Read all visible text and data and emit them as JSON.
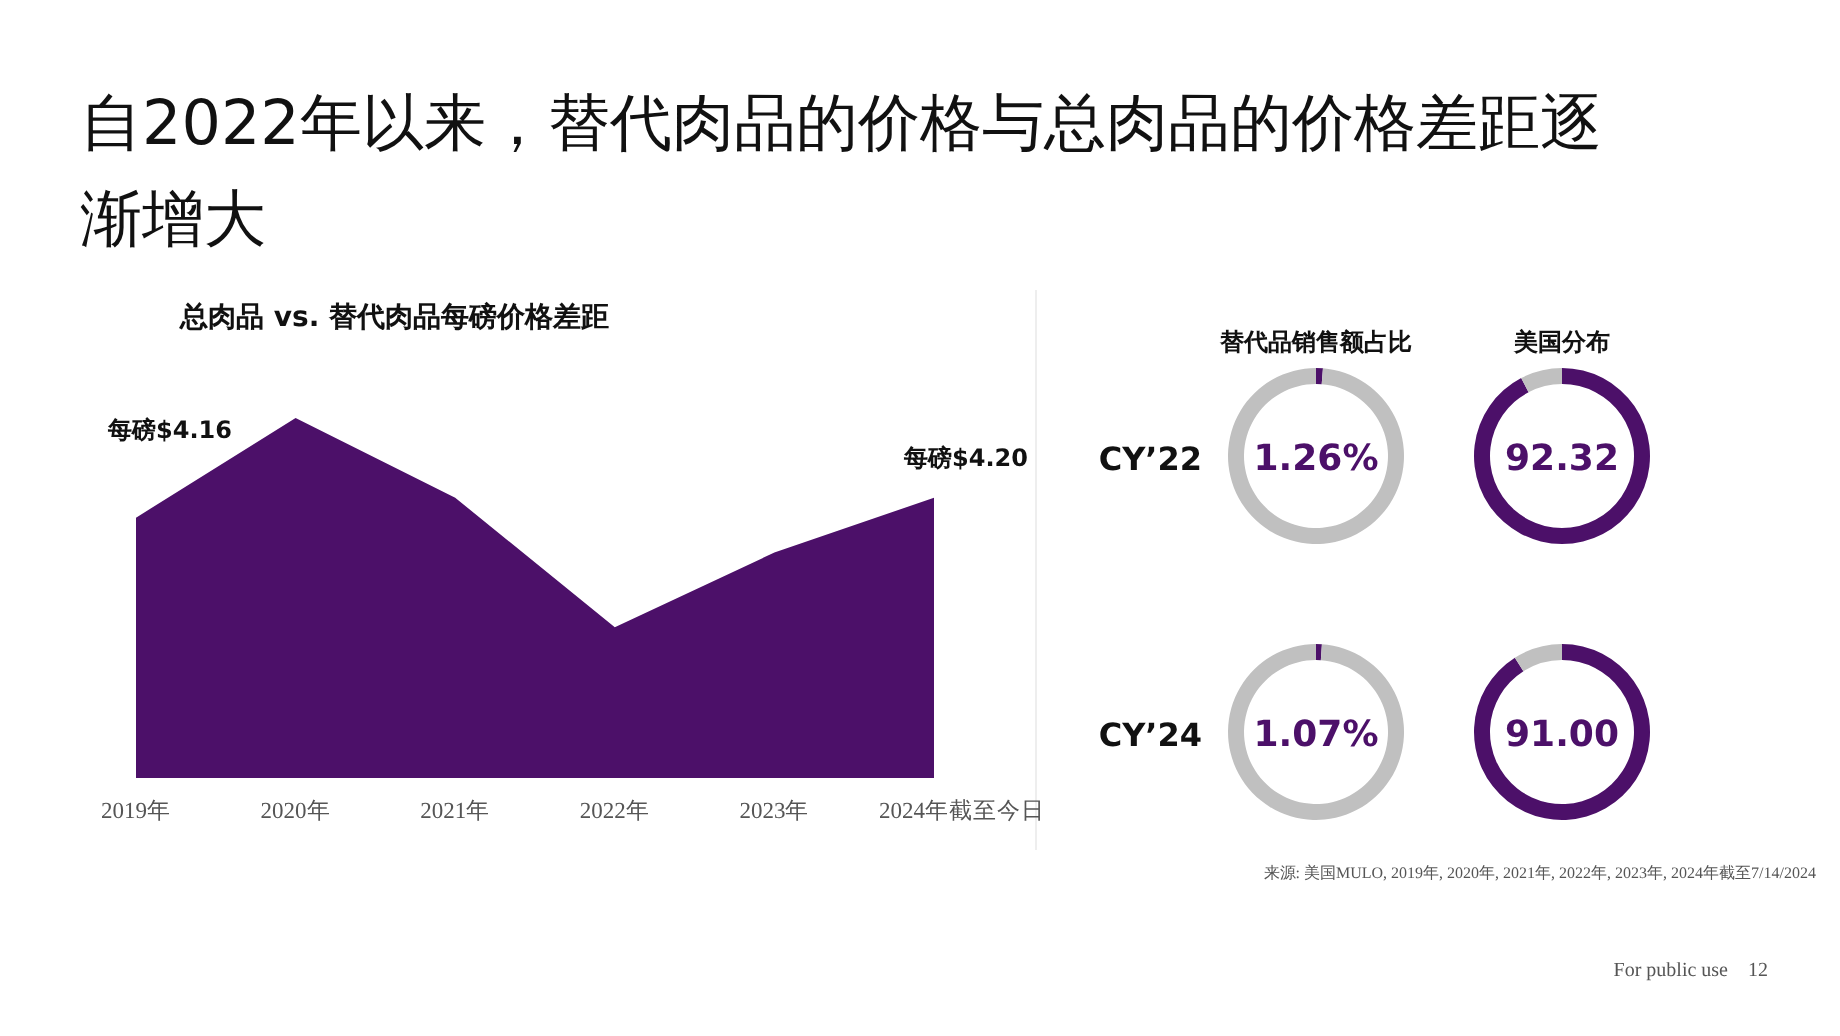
{
  "chart_data": [
    {
      "type": "area",
      "title": "自2022年以来，替代肉品的价格与总肉品的价格差距逐渐增大",
      "subtitle": "总肉品 vs. 替代肉品每磅价格差距",
      "categories": [
        "2019年",
        "2020年",
        "2021年",
        "2022年",
        "2023年",
        "2024年截至今日"
      ],
      "tick_labels": "x",
      "color": "#4c1069",
      "values": [
        4.16,
        4.36,
        4.2,
        3.94,
        4.09,
        4.2
      ],
      "value_labels": [
        "每磅$4.16",
        null,
        null,
        null,
        null,
        "每磅$4.20"
      ],
      "annotations": [
        "来源: 美国MULO, 2019年, 2020年, 2021年, 2022年, 2023年, 2024年截至7/14/2024",
        "For public use",
        "12"
      ]
    },
    {
      "type": "donut",
      "title": "替代品销售额占比",
      "annotations": [
        "1.26%",
        "CY’22"
      ],
      "categories": [
        null,
        null
      ],
      "values": [
        1.26,
        98.74
      ],
      "colors": [
        "#4c1069",
        "#c0c0c0"
      ]
    },
    {
      "type": "donut",
      "title": "美国分布",
      "annotations": [
        "92.32"
      ],
      "categories": [
        null,
        null
      ],
      "values": [
        92.32,
        7.68
      ],
      "colors": [
        "#4c1069",
        "#c0c0c0"
      ]
    },
    {
      "type": "donut",
      "annotations": [
        "1.07%",
        "CY’24"
      ],
      "categories": [
        null,
        null
      ],
      "values": [
        1.07,
        98.93
      ],
      "colors": [
        "#4c1069",
        "#c0c0c0"
      ]
    },
    {
      "type": "donut",
      "annotations": [
        "91.00"
      ],
      "categories": [
        null,
        null
      ],
      "values": [
        91,
        9
      ],
      "colors": [
        "#4c1069",
        "#c0c0c0"
      ]
    }
  ]
}
